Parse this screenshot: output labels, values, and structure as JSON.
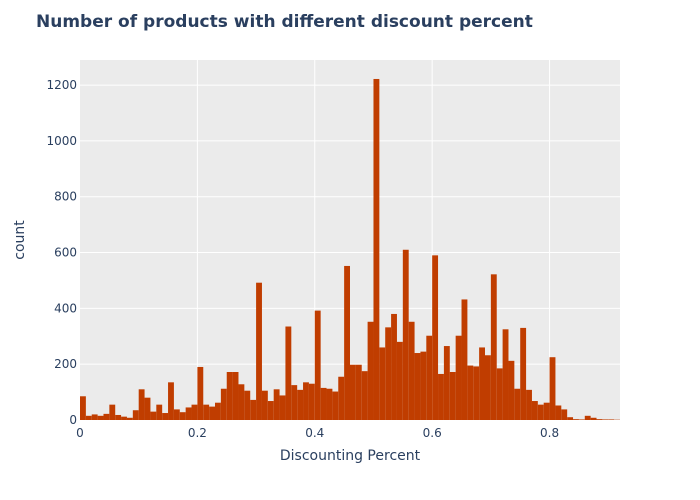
{
  "chart_data": {
    "type": "bar",
    "title": "Number of products with different discount percent",
    "xlabel": "Discounting Percent",
    "ylabel": "count",
    "xlim": [
      0,
      0.92
    ],
    "ylim": [
      0,
      1290
    ],
    "bin_width": 0.01,
    "xticks": [
      0,
      0.2,
      0.4,
      0.6,
      0.8
    ],
    "xtick_labels": [
      "0",
      "0.2",
      "0.4",
      "0.6",
      "0.8"
    ],
    "yticks": [
      0,
      200,
      400,
      600,
      800,
      1000,
      1200
    ],
    "ytick_labels": [
      "0",
      "200",
      "400",
      "600",
      "800",
      "1000",
      "1200"
    ],
    "grid": true,
    "bar_color": "#c03d00",
    "plot_background": "#ebebeb",
    "x": [
      0,
      0.01,
      0.02,
      0.03,
      0.04,
      0.05,
      0.06,
      0.07,
      0.08,
      0.09,
      0.1,
      0.11,
      0.12,
      0.13,
      0.14,
      0.15,
      0.16,
      0.17,
      0.18,
      0.19,
      0.2,
      0.21,
      0.22,
      0.23,
      0.24,
      0.25,
      0.26,
      0.27,
      0.28,
      0.29,
      0.3,
      0.31,
      0.32,
      0.33,
      0.34,
      0.35,
      0.36,
      0.37,
      0.38,
      0.39,
      0.4,
      0.41,
      0.42,
      0.43,
      0.44,
      0.45,
      0.46,
      0.47,
      0.48,
      0.49,
      0.5,
      0.51,
      0.52,
      0.53,
      0.54,
      0.55,
      0.56,
      0.57,
      0.58,
      0.59,
      0.6,
      0.61,
      0.62,
      0.63,
      0.64,
      0.65,
      0.66,
      0.67,
      0.68,
      0.69,
      0.7,
      0.71,
      0.72,
      0.73,
      0.74,
      0.75,
      0.76,
      0.77,
      0.78,
      0.79,
      0.8,
      0.81,
      0.82,
      0.83,
      0.84,
      0.85,
      0.86,
      0.87,
      0.88,
      0.89,
      0.9,
      0.91
    ],
    "values": [
      85,
      15,
      20,
      15,
      22,
      55,
      18,
      12,
      8,
      35,
      110,
      80,
      30,
      55,
      25,
      135,
      38,
      28,
      45,
      55,
      190,
      55,
      48,
      62,
      112,
      172,
      172,
      128,
      105,
      72,
      492,
      105,
      68,
      110,
      88,
      335,
      125,
      108,
      135,
      130,
      392,
      115,
      112,
      102,
      155,
      552,
      198,
      198,
      175,
      352,
      1222,
      260,
      332,
      380,
      280,
      610,
      352,
      240,
      245,
      302,
      590,
      165,
      265,
      172,
      302,
      432,
      195,
      192,
      260,
      232,
      522,
      185,
      325,
      212,
      112,
      330,
      108,
      68,
      55,
      62,
      225,
      52,
      38,
      10,
      3,
      2,
      15,
      8,
      3,
      2,
      2,
      1
    ]
  }
}
